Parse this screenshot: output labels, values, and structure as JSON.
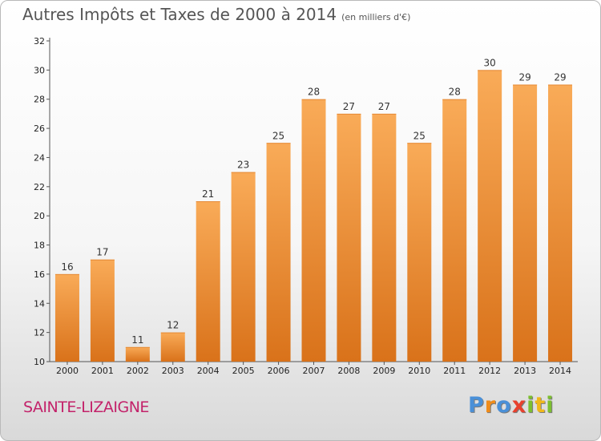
{
  "header": {
    "title": "Autres Impôts et Taxes de 2000 à 2014",
    "subtitle": "(en milliers d'€)"
  },
  "footer": {
    "town": "SAINTE-LIZAIGNE",
    "logo_letters": [
      "P",
      "r",
      "o",
      "x",
      "i",
      "t",
      "i"
    ]
  },
  "chart_data": {
    "type": "bar",
    "title": "Autres Impôts et Taxes de 2000 à 2014",
    "subtitle": "(en milliers d'€)",
    "categories": [
      "2000",
      "2001",
      "2002",
      "2003",
      "2004",
      "2005",
      "2006",
      "2007",
      "2008",
      "2009",
      "2010",
      "2011",
      "2012",
      "2013",
      "2014"
    ],
    "values": [
      16,
      17,
      11,
      12,
      21,
      23,
      25,
      28,
      27,
      27,
      25,
      28,
      30,
      29,
      29
    ],
    "ylim": [
      10,
      32
    ],
    "yticks": [
      10,
      12,
      14,
      16,
      18,
      20,
      22,
      24,
      26,
      28,
      30,
      32
    ],
    "grid": false,
    "legend": "none",
    "bar_color_top": "#f9ab58",
    "bar_color_bottom": "#d9721a"
  }
}
